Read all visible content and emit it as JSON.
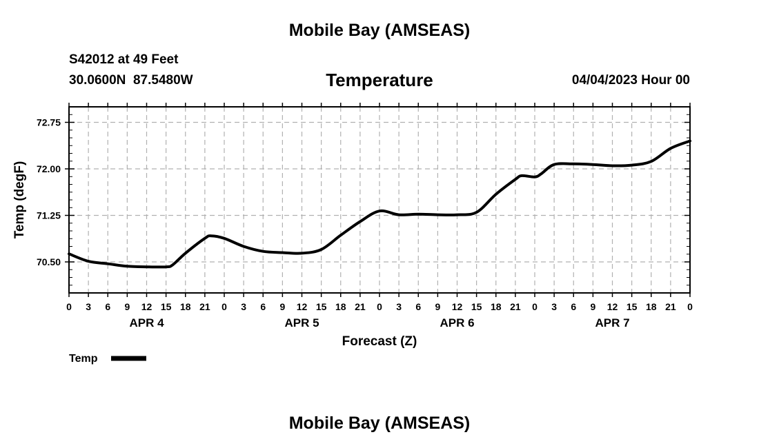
{
  "header": {
    "title_top": "Mobile Bay (AMSEAS)",
    "station_line": "S42012 at 49 Feet",
    "coords_line": "30.0600N  87.5480W",
    "datetime": "04/04/2023 Hour 00",
    "title_bottom": "Mobile Bay (AMSEAS)"
  },
  "chart_data": {
    "type": "line",
    "title": "Temperature",
    "xlabel": "Forecast (Z)",
    "ylabel": "Temp (degF)",
    "ylim": [
      70.0,
      73.0
    ],
    "xlim": [
      0,
      96
    ],
    "grid": true,
    "yticks": [
      70.5,
      71.25,
      72.0,
      72.75
    ],
    "ytick_labels": [
      "70.50",
      "71.25",
      "72.00",
      "72.75"
    ],
    "xticks": [
      0,
      3,
      6,
      9,
      12,
      15,
      18,
      21,
      24,
      27,
      30,
      33,
      36,
      39,
      42,
      45,
      48,
      51,
      54,
      57,
      60,
      63,
      66,
      69,
      72,
      75,
      78,
      81,
      84,
      87,
      90,
      93,
      96
    ],
    "xtick_labels": [
      "0",
      "3",
      "6",
      "9",
      "12",
      "15",
      "18",
      "21",
      "0",
      "3",
      "6",
      "9",
      "12",
      "15",
      "18",
      "21",
      "0",
      "3",
      "6",
      "9",
      "12",
      "15",
      "18",
      "21",
      "0",
      "3",
      "6",
      "9",
      "12",
      "15",
      "18",
      "21",
      "0"
    ],
    "day_labels": [
      {
        "label": "APR 4",
        "x": 12
      },
      {
        "label": "APR 5",
        "x": 36
      },
      {
        "label": "APR 6",
        "x": 60
      },
      {
        "label": "APR 7",
        "x": 84
      }
    ],
    "series": [
      {
        "name": "Temp",
        "x": [
          0,
          3,
          6,
          9,
          12,
          15,
          16,
          18,
          21,
          22,
          24,
          27,
          30,
          33,
          36,
          39,
          42,
          45,
          48,
          51,
          54,
          57,
          60,
          63,
          66,
          69,
          70,
          72,
          73,
          75,
          78,
          81,
          84,
          87,
          90,
          93,
          96
        ],
        "values": [
          70.63,
          70.51,
          70.47,
          70.43,
          70.42,
          70.42,
          70.45,
          70.64,
          70.88,
          70.92,
          70.88,
          70.75,
          70.67,
          70.65,
          70.64,
          70.7,
          70.93,
          71.15,
          71.32,
          71.26,
          71.27,
          71.26,
          71.26,
          71.3,
          71.59,
          71.83,
          71.89,
          71.87,
          71.92,
          72.07,
          72.08,
          72.07,
          72.05,
          72.06,
          72.12,
          72.33,
          72.45
        ]
      }
    ],
    "legend": [
      {
        "label": "Temp"
      }
    ],
    "legend_position": "bottom-left"
  }
}
